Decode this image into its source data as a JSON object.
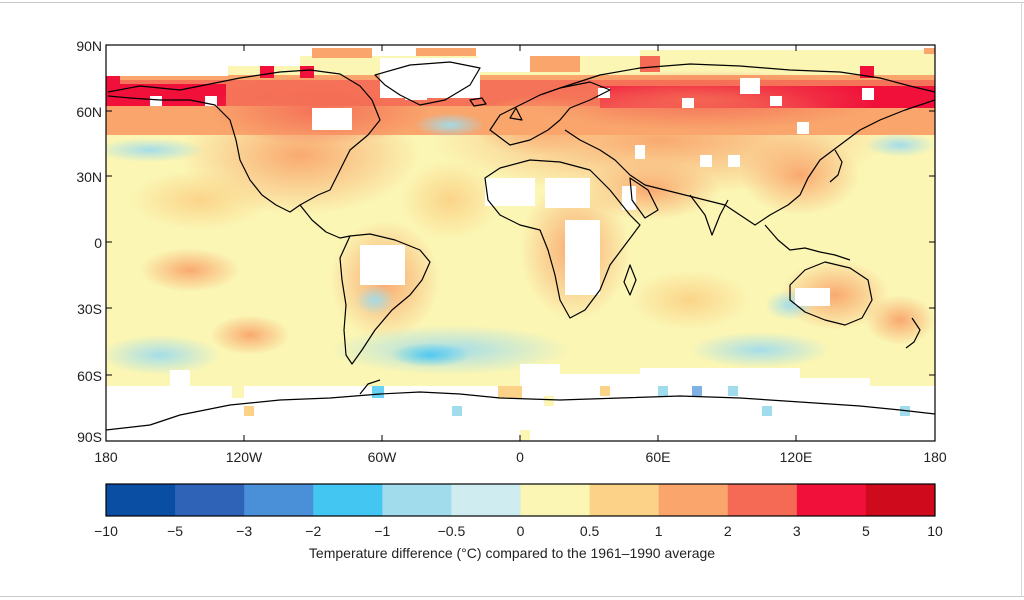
{
  "map": {
    "lat_labels": [
      "90N",
      "60N",
      "30N",
      "0",
      "30S",
      "60S",
      "90S"
    ],
    "lon_labels": [
      "180",
      "120W",
      "60W",
      "0",
      "60E",
      "120E",
      "180"
    ]
  },
  "legend": {
    "caption": "Temperature difference (°C) compared to the 1961–1990 average",
    "tick_labels": [
      "−10",
      "−5",
      "−3",
      "−2",
      "−1",
      "−0.5",
      "0",
      "0.5",
      "1",
      "2",
      "3",
      "5",
      "10"
    ],
    "colors": [
      "#0a4ea3",
      "#2f63b8",
      "#4a90d8",
      "#44c6f2",
      "#a0dcec",
      "#cfecf0",
      "#fbf6b4",
      "#fbd287",
      "#f9a56c",
      "#f46a55",
      "#f0103a",
      "#cf0a1d"
    ]
  },
  "colors": {
    "no_data": "#ffffff",
    "coastline": "#000000",
    "frame": "#000000"
  }
}
